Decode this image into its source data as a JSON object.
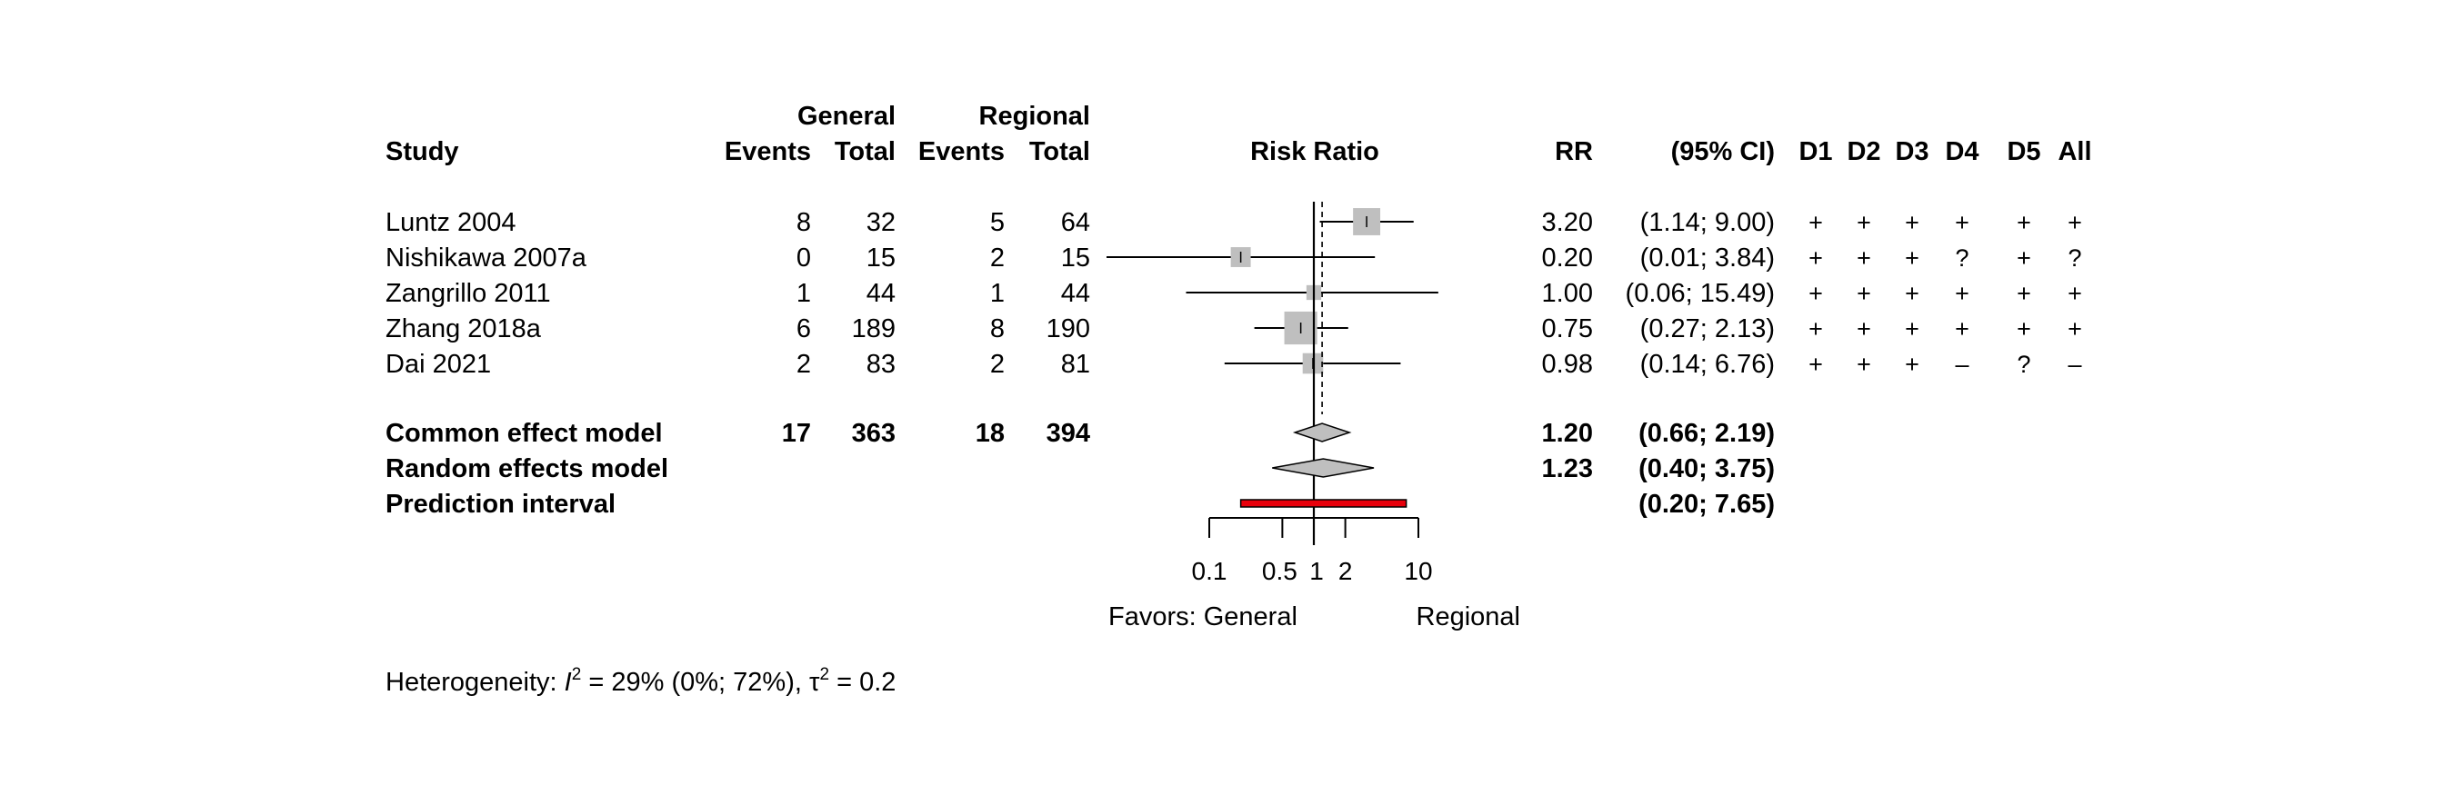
{
  "chart_data": {
    "type": "forest",
    "headers": {
      "study": "Study",
      "group1": "General",
      "group2": "Regional",
      "events": "Events",
      "total": "Total",
      "plot_title": "Risk Ratio",
      "rr": "RR",
      "ci": "(95% CI)",
      "domains": [
        "D1",
        "D2",
        "D3",
        "D4",
        "D5",
        "All"
      ]
    },
    "studies": [
      {
        "name": "Luntz 2004",
        "e1": "8",
        "n1": "32",
        "e2": "5",
        "n2": "64",
        "rr": 3.2,
        "lower": 1.14,
        "upper": 9.0,
        "weight": 0.27,
        "rr_text": "3.20",
        "ci_text": "(1.14;  9.00)",
        "risk": [
          "+",
          "+",
          "+",
          "+",
          "+",
          "+"
        ]
      },
      {
        "name": "Nishikawa 2007a",
        "e1": "0",
        "n1": "15",
        "e2": "2",
        "n2": "15",
        "rr": 0.2,
        "lower": 0.01,
        "upper": 3.84,
        "weight": 0.12,
        "rr_text": "0.20",
        "ci_text": "(0.01;  3.84)",
        "risk": [
          "+",
          "+",
          "+",
          "?",
          "+",
          "?"
        ]
      },
      {
        "name": "Zangrillo 2011",
        "e1": "1",
        "n1": "44",
        "e2": "1",
        "n2": "44",
        "rr": 1.0,
        "lower": 0.06,
        "upper": 15.49,
        "weight": 0.05,
        "rr_text": "1.00",
        "ci_text": "(0.06; 15.49)",
        "risk": [
          "+",
          "+",
          "+",
          "+",
          "+",
          "+"
        ]
      },
      {
        "name": "Zhang 2018a",
        "e1": "6",
        "n1": "189",
        "e2": "8",
        "n2": "190",
        "rr": 0.75,
        "lower": 0.27,
        "upper": 2.13,
        "weight": 0.43,
        "rr_text": "0.75",
        "ci_text": "(0.27;  2.13)",
        "risk": [
          "+",
          "+",
          "+",
          "+",
          "+",
          "+"
        ]
      },
      {
        "name": "Dai 2021",
        "e1": "2",
        "n1": "83",
        "e2": "2",
        "n2": "81",
        "rr": 0.98,
        "lower": 0.14,
        "upper": 6.76,
        "weight": 0.13,
        "rr_text": "0.98",
        "ci_text": "(0.14;  6.76)",
        "risk": [
          "+",
          "+",
          "+",
          "–",
          "?",
          "–"
        ]
      }
    ],
    "common": {
      "name": "Common effect model",
      "e1": "17",
      "n1": "363",
      "e2": "18",
      "n2": "394",
      "rr": 1.2,
      "lower": 0.66,
      "upper": 2.19,
      "rr_text": "1.20",
      "ci_text": "(0.66;  2.19)"
    },
    "random": {
      "name": "Random effects model",
      "rr": 1.23,
      "lower": 0.4,
      "upper": 3.75,
      "rr_text": "1.23",
      "ci_text": "(0.40;  3.75)"
    },
    "prediction": {
      "name": "Prediction interval",
      "lower": 0.2,
      "upper": 7.65,
      "ci_text": "(0.20;  7.65)"
    },
    "axis": {
      "scale": "log",
      "ticks": [
        0.1,
        0.5,
        1,
        2,
        10
      ],
      "tick_labels": [
        "0.1",
        "0.5",
        "1",
        "2",
        "10"
      ],
      "xlim": [
        0.1,
        10
      ],
      "left_label": "Favors: General",
      "right_label": "Regional"
    },
    "heterogeneity": {
      "prefix": "Heterogeneity: ",
      "i2_symbol": "I",
      "i2_text": " = 29% (0%; 72%), ",
      "tau_symbol": "τ",
      "tau_text": " = 0.2",
      "superscript": "2"
    },
    "colors": {
      "square": "#bfbfbf",
      "diamond": "#bfbfbf",
      "prediction_fill": "#e8000b",
      "line": "#000000"
    }
  }
}
